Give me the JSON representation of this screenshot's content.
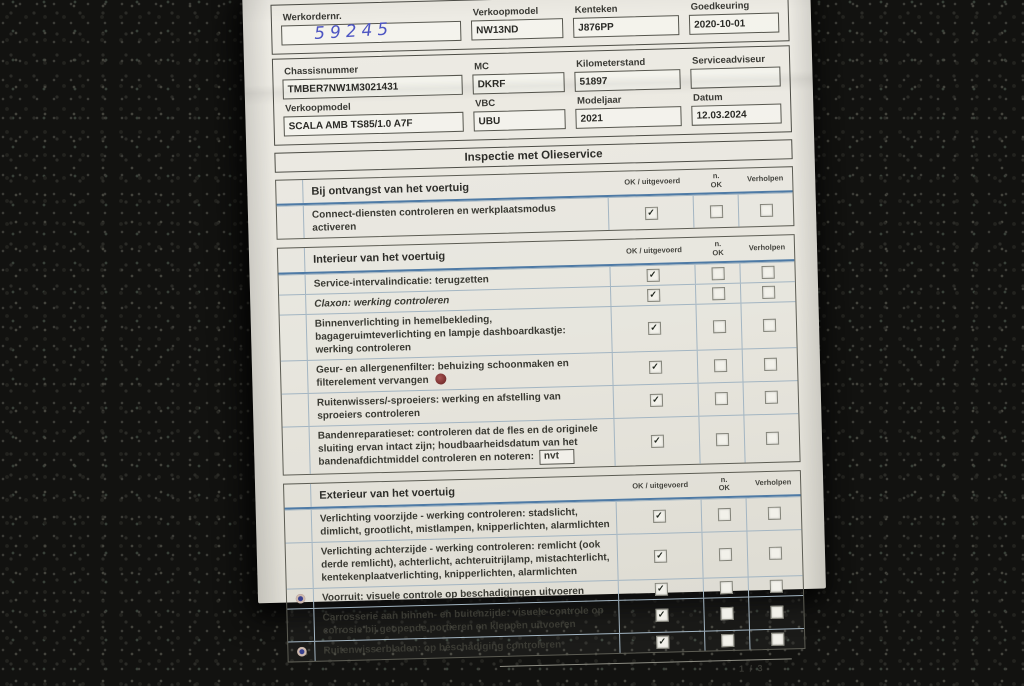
{
  "title": "Inspectie met Olieservice",
  "header": {
    "rows": [
      [
        {
          "label": "Werkordernr.",
          "value": "59245",
          "style": "handwritten"
        },
        {
          "label": "Verkoopmodel",
          "value": "NW13ND"
        },
        {
          "label": "Kenteken",
          "value": "J876PP"
        },
        {
          "label": "Goedkeuring",
          "value": "2020-10-01"
        }
      ],
      [
        {
          "label": "Chassisnummer",
          "value": "TMBER7NW1M3021431"
        },
        {
          "label": "MC",
          "value": "DKRF"
        },
        {
          "label": "Kilometerstand",
          "value": "51897"
        },
        {
          "label": "Serviceadviseur",
          "value": ""
        }
      ],
      [
        {
          "label": "Verkoopmodel",
          "value": "SCALA AMB TS85/1.0 A7F"
        },
        {
          "label": "VBC",
          "value": "UBU"
        },
        {
          "label": "Modeljaar",
          "value": "2021"
        },
        {
          "label": "Datum",
          "value": "12.03.2024"
        }
      ]
    ]
  },
  "columns": {
    "ok": "OK / uitgevoerd",
    "nok_top": "n.",
    "nok_bottom": "OK",
    "resolved": "Verholpen"
  },
  "sections": [
    {
      "title": "Bij ontvangst van het voertuig",
      "rows": [
        {
          "text": "Connect-diensten controleren en werkplaatsmodus activeren",
          "checks": [
            true,
            false,
            false
          ]
        }
      ]
    },
    {
      "title": "Interieur van het voertuig",
      "rows": [
        {
          "text": "Service-intervalindicatie: terugzetten",
          "checks": [
            true,
            false,
            false
          ]
        },
        {
          "text": "Claxon: werking controleren",
          "italic": true,
          "checks": [
            true,
            false,
            false
          ]
        },
        {
          "text": "Binnenverlichting in hemelbekleding, bagageruimteverlichting en lampje dashboardkastje: werking controleren",
          "checks": [
            true,
            false,
            false
          ]
        },
        {
          "text": "Geur- en allergenenfilter: behuizing schoonmaken en filterelement vervangen",
          "stamp": true,
          "checks": [
            true,
            false,
            false
          ]
        },
        {
          "text": "Ruitenwissers/-sproeiers: werking en afstelling van sproeiers controleren",
          "checks": [
            true,
            false,
            false
          ]
        },
        {
          "text": "Bandenreparatieset: controleren dat de fles en de originele sluiting ervan intact zijn; houdbaarheidsdatum van het bandenafdichtmiddel controleren en noteren:",
          "inline_value": "nvt",
          "checks": [
            true,
            false,
            false
          ]
        }
      ]
    },
    {
      "title": "Exterieur van het voertuig",
      "rows": [
        {
          "text": "Verlichting voorzijde - werking controleren: stadslicht, dimlicht, grootlicht, mistlampen, knipperlichten, alarmlichten",
          "checks": [
            true,
            false,
            false
          ]
        },
        {
          "text": "Verlichting achterzijde - werking controleren: remlicht (ook derde remlicht), achterlicht, achteruitrijlamp, mistachterlicht, kentekenplaatverlichting, knipperlichten, alarmlichten",
          "checks": [
            true,
            false,
            false
          ]
        },
        {
          "text": "Voorruit: visuele controle op beschadigingen uitvoeren",
          "icon": "eye",
          "checks": [
            true,
            false,
            false
          ]
        },
        {
          "text": "Carrosserie aan binnen- en buitenzijde: visuele controle op corrosie bij geopende portieren en kleppen uitvoeren",
          "checks": [
            true,
            false,
            false
          ]
        },
        {
          "text": "Ruitenwisserbladen: op beschadiging controleren",
          "icon": "eye",
          "checks": [
            true,
            false,
            false
          ]
        }
      ]
    }
  ],
  "footer": {
    "page": "1 / 3"
  },
  "marks": {
    "checked_glyph": "✓"
  },
  "colors": {
    "accent_line": "#4e7aa5",
    "stamp": "#7a2424",
    "handwriting_ink": "#4d55c2",
    "paper": "#e9e7df",
    "carpet": "#141412"
  }
}
